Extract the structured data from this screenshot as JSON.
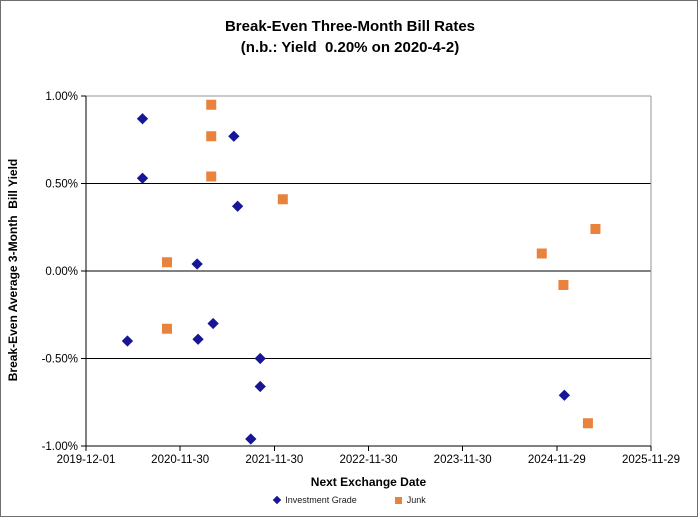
{
  "title": {
    "line1": "Break-Even Three-Month Bill Rates",
    "line2": "(n.b.: Yield  0.20% on 2020-4-2)"
  },
  "chart_data": {
    "type": "scatter",
    "title": "Break-Even Three-Month Bill Rates",
    "subtitle": "(n.b.: Yield  0.20% on 2020-4-2)",
    "xlabel": "Next Exchange Date",
    "ylabel": "Break-Even Average 3-Month  Bill Yield",
    "grid": "horizontal-only",
    "legend_position": "bottom-center",
    "x_axis": {
      "unit": "years since first tick (date axis)",
      "min": 0,
      "max": 6,
      "tick_positions": [
        0,
        1,
        2,
        3,
        4,
        5,
        6
      ],
      "tick_labels": [
        "2019-12-01",
        "2020-11-30",
        "2021-11-30",
        "2022-11-30",
        "2023-11-30",
        "2024-11-29",
        "2025-11-29"
      ]
    },
    "y_axis": {
      "min": -1.0,
      "max": 1.0,
      "tick_step": 0.5,
      "tick_values": [
        1.0,
        0.5,
        0.0,
        -0.5,
        -1.0
      ],
      "tick_labels": [
        "1.00%",
        "0.50%",
        "0.00%",
        "-0.50%",
        "-1.00%"
      ]
    },
    "colors": {
      "investment_grade": "#161696",
      "junk": "#E8823C",
      "gridline": "#000000",
      "plot_border": "#969696"
    },
    "series": [
      {
        "name": "Investment Grade",
        "marker": "diamond",
        "color": "#161696",
        "points": [
          [
            0.6,
            0.87
          ],
          [
            0.6,
            0.53
          ],
          [
            1.57,
            0.77
          ],
          [
            1.61,
            0.37
          ],
          [
            1.18,
            0.04
          ],
          [
            1.35,
            -0.3
          ],
          [
            0.44,
            -0.4
          ],
          [
            1.19,
            -0.39
          ],
          [
            1.85,
            -0.5
          ],
          [
            1.85,
            -0.66
          ],
          [
            1.75,
            -0.96
          ],
          [
            5.08,
            -0.71
          ]
        ]
      },
      {
        "name": "Junk",
        "marker": "square",
        "color": "#E8823C",
        "points": [
          [
            1.33,
            0.95
          ],
          [
            1.33,
            0.77
          ],
          [
            1.33,
            0.54
          ],
          [
            2.09,
            0.41
          ],
          [
            0.86,
            0.05
          ],
          [
            0.86,
            -0.33
          ],
          [
            4.84,
            0.1
          ],
          [
            5.07,
            -0.08
          ],
          [
            5.33,
            -0.87
          ],
          [
            5.41,
            0.24
          ]
        ]
      }
    ]
  }
}
